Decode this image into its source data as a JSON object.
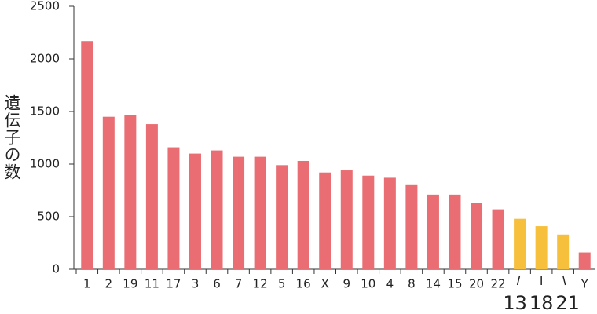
{
  "chart_data": {
    "type": "bar",
    "ylabel": "遺伝子の数",
    "categories": [
      "1",
      "2",
      "19",
      "11",
      "17",
      "3",
      "6",
      "7",
      "12",
      "5",
      "16",
      "X",
      "9",
      "10",
      "4",
      "8",
      "14",
      "15",
      "20",
      "22",
      "13",
      "18",
      "21",
      "Y"
    ],
    "values": [
      2170,
      1450,
      1470,
      1380,
      1160,
      1100,
      1130,
      1070,
      1070,
      990,
      1030,
      920,
      940,
      890,
      870,
      800,
      710,
      710,
      630,
      570,
      480,
      410,
      330,
      160
    ],
    "colors": [
      "#e96d72",
      "#e96d72",
      "#e96d72",
      "#e96d72",
      "#e96d72",
      "#e96d72",
      "#e96d72",
      "#e96d72",
      "#e96d72",
      "#e96d72",
      "#e96d72",
      "#e96d72",
      "#e96d72",
      "#e96d72",
      "#e96d72",
      "#e96d72",
      "#e96d72",
      "#e96d72",
      "#e96d72",
      "#e96d72",
      "#f7c03c",
      "#f7c03c",
      "#f7c03c",
      "#e96d72"
    ],
    "highlight_color": "#f7c03c",
    "ylim": [
      0,
      2500
    ],
    "yticks": [
      0,
      500,
      1000,
      1500,
      2000,
      2500
    ]
  }
}
